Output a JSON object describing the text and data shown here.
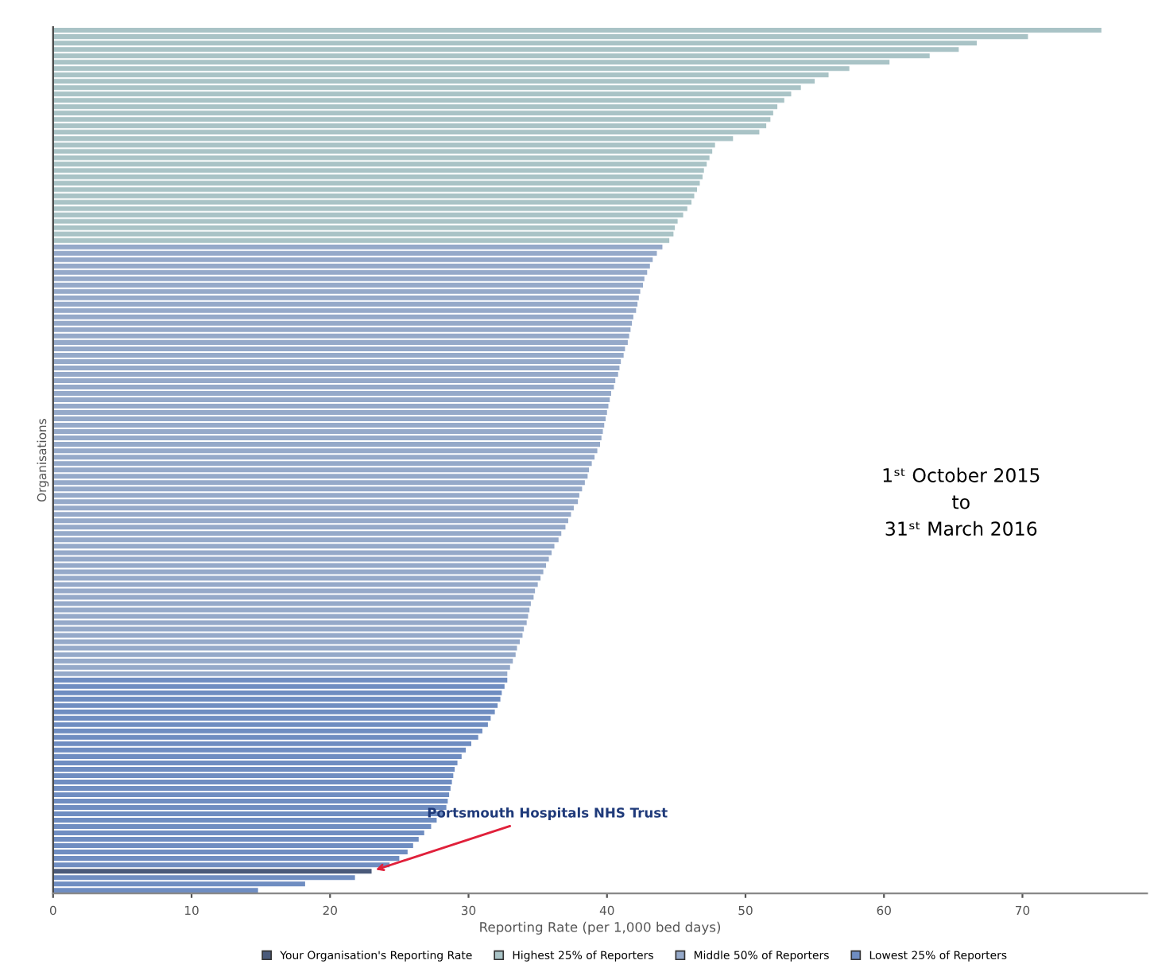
{
  "chart_data": {
    "type": "bar",
    "orientation": "horizontal",
    "xlabel": "Reporting Rate (per 1,000 bed days)",
    "ylabel": "Organisations",
    "categories": [
      null,
      null,
      null,
      null,
      null,
      null,
      null,
      null,
      null,
      null,
      null,
      null,
      null,
      null,
      null,
      null,
      null,
      null,
      null,
      null,
      null,
      null,
      null,
      null,
      null,
      null,
      null,
      null,
      null,
      null,
      null,
      null,
      null,
      null,
      null,
      null,
      null,
      null,
      null,
      null,
      null,
      null,
      null,
      null,
      null,
      null,
      null,
      null,
      null,
      null,
      null,
      null,
      null,
      null,
      null,
      null,
      null,
      null,
      null,
      null,
      null,
      null,
      null,
      null,
      null,
      null,
      null,
      null,
      null,
      null,
      null,
      null,
      null,
      null,
      null,
      null,
      null,
      null,
      null,
      null,
      null,
      null,
      null,
      null,
      null,
      null,
      null,
      null,
      null,
      null,
      null,
      null,
      null,
      null,
      null,
      null,
      null,
      null,
      null,
      null,
      null,
      null,
      null,
      null,
      null,
      null,
      null,
      null,
      null,
      null,
      null,
      null,
      null,
      null,
      null,
      null,
      null,
      null,
      null,
      null,
      null,
      null,
      null,
      null,
      null,
      null,
      null,
      null,
      null,
      null,
      null,
      null,
      null,
      null,
      null,
      null
    ],
    "series": [
      {
        "name": "Your Organisation's Reporting Rate",
        "color": "#4a5a7a",
        "values": [
          null,
          null,
          null,
          null,
          null,
          null,
          null,
          null,
          null,
          null,
          null,
          null,
          null,
          null,
          null,
          null,
          null,
          null,
          null,
          null,
          null,
          null,
          null,
          null,
          null,
          null,
          null,
          null,
          null,
          null,
          null,
          null,
          null,
          null,
          null,
          null,
          null,
          null,
          null,
          null,
          null,
          null,
          null,
          null,
          null,
          null,
          null,
          null,
          null,
          null,
          null,
          null,
          null,
          null,
          null,
          null,
          null,
          null,
          null,
          null,
          null,
          null,
          null,
          null,
          null,
          null,
          null,
          null,
          null,
          null,
          null,
          null,
          null,
          null,
          null,
          null,
          null,
          null,
          null,
          null,
          null,
          null,
          null,
          null,
          null,
          null,
          null,
          null,
          null,
          null,
          null,
          null,
          null,
          null,
          null,
          null,
          null,
          null,
          null,
          null,
          null,
          null,
          null,
          null,
          null,
          null,
          null,
          null,
          null,
          null,
          null,
          null,
          null,
          null,
          null,
          null,
          null,
          null,
          null,
          null,
          null,
          null,
          null,
          null,
          null,
          null,
          null,
          null,
          null,
          null,
          null,
          null,
          23.0,
          null,
          null,
          null
        ]
      },
      {
        "name": "Highest 25% of Reporters",
        "color": "#a9c3c6",
        "values": [
          75.7,
          70.4,
          66.7,
          65.4,
          63.3,
          60.4,
          57.5,
          56,
          55,
          54,
          53.3,
          52.8,
          52.3,
          52,
          51.8,
          51.5,
          51,
          49.1,
          47.8,
          47.6,
          47.4,
          47.2,
          47,
          46.9,
          46.7,
          46.5,
          46.3,
          46.1,
          45.8,
          45.5,
          45.1,
          44.9,
          44.8,
          44.5,
          null,
          null,
          null,
          null,
          null,
          null,
          null,
          null,
          null,
          null,
          null,
          null,
          null,
          null,
          null,
          null,
          null,
          null,
          null,
          null,
          null,
          null,
          null,
          null,
          null,
          null,
          null,
          null,
          null,
          null,
          null,
          null,
          null,
          null,
          null,
          null,
          null,
          null,
          null,
          null,
          null,
          null,
          null,
          null,
          null,
          null,
          null,
          null,
          null,
          null,
          null,
          null,
          null,
          null,
          null,
          null,
          null,
          null,
          null,
          null,
          null,
          null,
          null,
          null,
          null,
          null,
          null,
          null,
          null,
          null,
          null,
          null,
          null,
          null,
          null,
          null,
          null,
          null,
          null,
          null,
          null,
          null,
          null,
          null,
          null,
          null,
          null,
          null,
          null,
          null,
          null,
          null,
          null,
          null,
          null,
          null,
          null,
          null,
          null,
          null,
          null,
          null
        ]
      },
      {
        "name": "Middle 50% of Reporters",
        "color": "#95a9c9",
        "values": [
          null,
          null,
          null,
          null,
          null,
          null,
          null,
          null,
          null,
          null,
          null,
          null,
          null,
          null,
          null,
          null,
          null,
          null,
          null,
          null,
          null,
          null,
          null,
          null,
          null,
          null,
          null,
          null,
          null,
          null,
          null,
          null,
          null,
          null,
          44.0,
          43.6,
          43.3,
          43.1,
          42.9,
          42.7,
          42.6,
          42.4,
          42.3,
          42.2,
          42.1,
          41.9,
          41.8,
          41.7,
          41.6,
          41.5,
          41.3,
          41.2,
          41.0,
          40.9,
          40.8,
          40.6,
          40.5,
          40.3,
          40.2,
          40.1,
          40.0,
          39.9,
          39.8,
          39.7,
          39.6,
          39.5,
          39.3,
          39.1,
          38.9,
          38.7,
          38.6,
          38.4,
          38.2,
          38.0,
          37.9,
          37.6,
          37.4,
          37.2,
          37.0,
          36.7,
          36.5,
          36.2,
          36.0,
          35.8,
          35.6,
          35.4,
          35.2,
          35.0,
          34.8,
          34.7,
          34.5,
          34.4,
          34.3,
          34.2,
          34.0,
          33.9,
          33.7,
          33.5,
          33.4,
          33.2,
          33.0,
          32.8,
          null,
          null,
          null,
          null,
          null,
          null,
          null,
          null,
          null,
          null,
          null,
          null,
          null,
          null,
          null,
          null,
          null,
          null,
          null,
          null,
          null,
          null,
          null,
          null,
          null,
          null,
          null,
          null,
          null,
          null,
          null,
          null,
          null,
          null
        ]
      },
      {
        "name": "Lowest 25% of Reporters",
        "color": "#6f8dc1",
        "values": [
          null,
          null,
          null,
          null,
          null,
          null,
          null,
          null,
          null,
          null,
          null,
          null,
          null,
          null,
          null,
          null,
          null,
          null,
          null,
          null,
          null,
          null,
          null,
          null,
          null,
          null,
          null,
          null,
          null,
          null,
          null,
          null,
          null,
          null,
          null,
          null,
          null,
          null,
          null,
          null,
          null,
          null,
          null,
          null,
          null,
          null,
          null,
          null,
          null,
          null,
          null,
          null,
          null,
          null,
          null,
          null,
          null,
          null,
          null,
          null,
          null,
          null,
          null,
          null,
          null,
          null,
          null,
          null,
          null,
          null,
          null,
          null,
          null,
          null,
          null,
          null,
          null,
          null,
          null,
          null,
          null,
          null,
          null,
          null,
          null,
          null,
          null,
          null,
          null,
          null,
          null,
          null,
          null,
          null,
          null,
          null,
          null,
          null,
          null,
          null,
          null,
          null,
          32.8,
          32.6,
          32.4,
          32.3,
          32.1,
          31.9,
          31.6,
          31.4,
          31.0,
          30.7,
          30.2,
          29.8,
          29.5,
          29.2,
          29.0,
          28.9,
          28.8,
          28.7,
          28.6,
          28.5,
          28.4,
          28.2,
          27.7,
          27.3,
          26.8,
          26.4,
          26.0,
          25.6,
          25.0,
          24.3,
          null,
          21.8,
          18.2,
          14.8
        ]
      }
    ],
    "xlim": [
      0,
      79
    ],
    "xticks": [
      0,
      10,
      20,
      30,
      40,
      50,
      60,
      70
    ],
    "tick_labels": "x",
    "legend": "bottom",
    "grid": false,
    "annotations": [
      "Portsmouth Hospitals NHS Trust",
      "1ˢᵗ October 2015\nto\n31ˢᵗ March 2016"
    ]
  }
}
